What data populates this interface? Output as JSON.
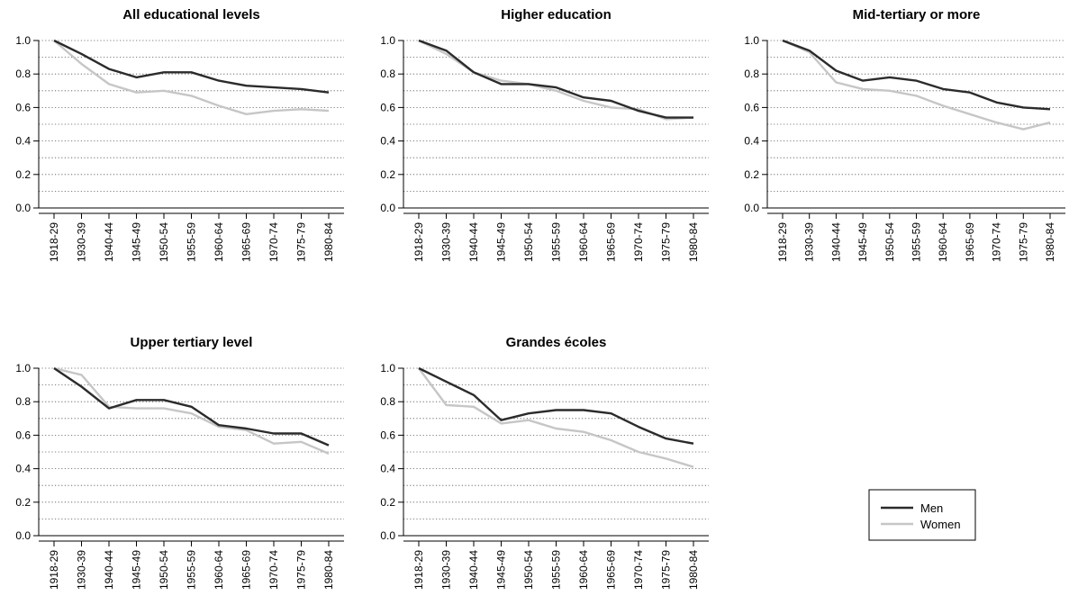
{
  "chart_data": {
    "type": "line",
    "grid": "horizontal dotted",
    "legend": {
      "position": "bottom-right",
      "entries": [
        {
          "label": "Men",
          "color": "#2b2b2b"
        },
        {
          "label": "Women",
          "color": "#c6c6c6"
        }
      ]
    },
    "categories": [
      "1918-29",
      "1930-39",
      "1940-44",
      "1945-49",
      "1950-54",
      "1955-59",
      "1960-64",
      "1965-69",
      "1970-74",
      "1975-79",
      "1980-84"
    ],
    "yticks": [
      "0.0",
      "0.2",
      "0.4",
      "0.6",
      "0.8",
      "1.0"
    ],
    "ylim": [
      0,
      1
    ],
    "panels": [
      {
        "title": "All educational levels",
        "series": [
          {
            "name": "Men",
            "values": [
              1.0,
              0.92,
              0.83,
              0.78,
              0.81,
              0.81,
              0.76,
              0.73,
              0.72,
              0.71,
              0.69
            ]
          },
          {
            "name": "Women",
            "values": [
              1.0,
              0.86,
              0.74,
              0.69,
              0.7,
              0.67,
              0.61,
              0.56,
              0.58,
              0.59,
              0.58
            ]
          }
        ]
      },
      {
        "title": "Higher education",
        "series": [
          {
            "name": "Men",
            "values": [
              1.0,
              0.94,
              0.81,
              0.74,
              0.74,
              0.72,
              0.66,
              0.64,
              0.58,
              0.54,
              0.54
            ]
          },
          {
            "name": "Women",
            "values": [
              1.0,
              0.92,
              0.81,
              0.76,
              0.74,
              0.7,
              0.64,
              0.6,
              0.59,
              0.53,
              0.54
            ]
          }
        ]
      },
      {
        "title": "Mid-tertiary or more",
        "series": [
          {
            "name": "Men",
            "values": [
              1.0,
              0.94,
              0.82,
              0.76,
              0.78,
              0.76,
              0.71,
              0.69,
              0.63,
              0.6,
              0.59
            ]
          },
          {
            "name": "Women",
            "values": [
              1.0,
              0.93,
              0.75,
              0.71,
              0.7,
              0.67,
              0.61,
              0.56,
              0.51,
              0.47,
              0.51
            ]
          }
        ]
      },
      {
        "title": "Upper tertiary level",
        "series": [
          {
            "name": "Men",
            "values": [
              1.0,
              0.89,
              0.76,
              0.81,
              0.81,
              0.77,
              0.66,
              0.64,
              0.61,
              0.61,
              0.54
            ]
          },
          {
            "name": "Women",
            "values": [
              1.0,
              0.96,
              0.77,
              0.76,
              0.76,
              0.73,
              0.65,
              0.63,
              0.55,
              0.56,
              0.49
            ]
          }
        ]
      },
      {
        "title": "Grandes écoles",
        "series": [
          {
            "name": "Men",
            "values": [
              1.0,
              0.92,
              0.84,
              0.69,
              0.73,
              0.75,
              0.75,
              0.73,
              0.65,
              0.58,
              0.55
            ]
          },
          {
            "name": "Women",
            "values": [
              1.0,
              0.78,
              0.77,
              0.67,
              0.69,
              0.64,
              0.62,
              0.57,
              0.5,
              0.46,
              0.41
            ]
          }
        ]
      }
    ]
  }
}
